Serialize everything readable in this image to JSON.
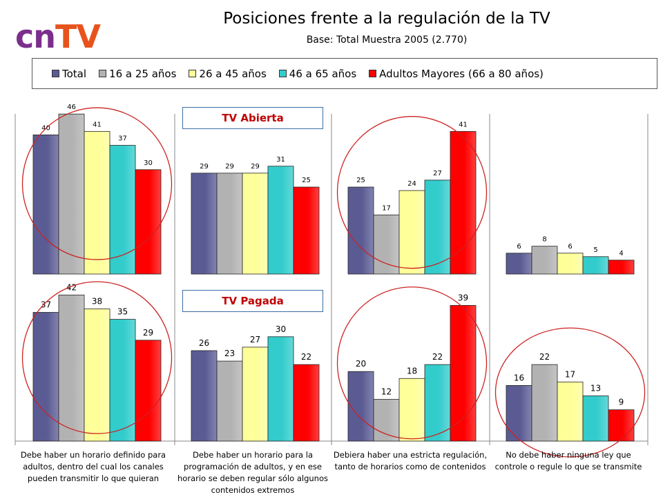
{
  "logo": {
    "part1": "cn",
    "part2": "TV"
  },
  "header": {
    "title": "Posiciones frente a la regulación de la TV",
    "subtitle": "Base: Total Muestra 2005 (2.770)"
  },
  "legend": [
    {
      "label": "Total",
      "color": "#5b5b94"
    },
    {
      "label": "16 a 25 años",
      "color": "#b2b2b2"
    },
    {
      "label": "26 a 45 años",
      "color": "#ffff99"
    },
    {
      "label": "46 a 65 años",
      "color": "#33cccc"
    },
    {
      "label": "Adultos Mayores (66 a 80 años)",
      "color": "#ff0000"
    }
  ],
  "sections": {
    "top_label": "TV Abierta",
    "bottom_label": "TV Pagada"
  },
  "chart_data": {
    "type": "bar",
    "categories": [
      "Debe haber un horario definido para adultos, dentro del cual los canales pueden transmitir lo que quieran",
      "Debe haber un horario para la programación de adultos, y en ese horario se deben regular sólo algunos contenidos extremos",
      "Debiera haber una estricta regulación, tanto de horarios como de contenidos",
      "No debe haber ninguna ley que controle o regule lo que se transmite"
    ],
    "category_lines": [
      [
        "Debe haber un horario definido para",
        "adultos, dentro del cual los canales",
        "pueden transmitir lo que quieran"
      ],
      [
        "Debe haber un horario para la",
        "programación de adultos, y en ese",
        "horario se deben regular sólo algunos",
        "contenidos extremos"
      ],
      [
        "Debiera haber una estricta regulación,",
        "tanto de horarios como de contenidos"
      ],
      [
        "No debe haber ninguna ley que",
        "controle o regule lo que se transmite"
      ]
    ],
    "series_names": [
      "Total",
      "16 a 25 años",
      "26 a 45 años",
      "46 a 65 años",
      "Adultos Mayores (66 a 80 años)"
    ],
    "panels": [
      {
        "label": "TV Abierta",
        "values": [
          [
            40,
            46,
            41,
            37,
            30
          ],
          [
            29,
            29,
            29,
            31,
            25
          ],
          [
            25,
            17,
            24,
            27,
            41
          ],
          [
            6,
            8,
            6,
            5,
            4
          ]
        ],
        "highlighted_categories": [
          0,
          2
        ]
      },
      {
        "label": "TV Pagada",
        "values": [
          [
            37,
            42,
            38,
            35,
            29
          ],
          [
            26,
            23,
            27,
            30,
            22
          ],
          [
            20,
            12,
            18,
            22,
            39
          ],
          [
            16,
            22,
            17,
            13,
            9
          ]
        ],
        "highlighted_categories": [
          0,
          2,
          3
        ]
      }
    ],
    "ylim": [
      0,
      50
    ],
    "grid": false,
    "legend_position": "top"
  }
}
